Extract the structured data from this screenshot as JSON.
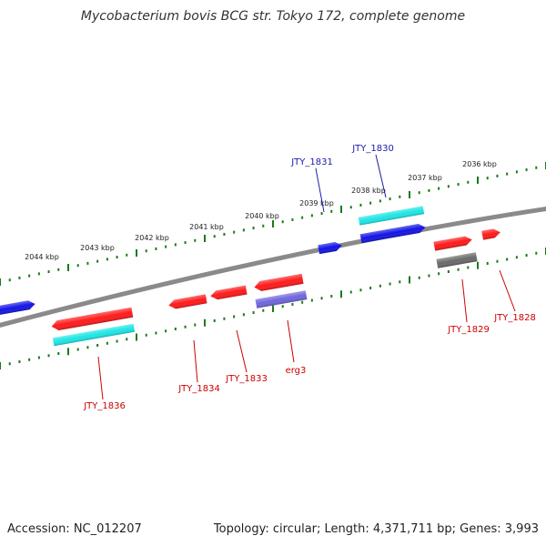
{
  "title": "Mycobacterium bovis BCG str. Tokyo 172, complete genome",
  "footer": {
    "accession": "Accession: NC_012207",
    "summary": "Topology: circular; Length: 4,371,711 bp; Genes: 3,993"
  },
  "colors": {
    "backbone": "#8a8a8a",
    "ticks": "#1a7a1a",
    "red": "#ff1a1a",
    "blue": "#1414e6",
    "cyan": "#1ee6e6",
    "slate": "#7066dd",
    "gray": "#6a6a6a",
    "label_red": "#cc0000",
    "label_blue": "#1a1aa8"
  },
  "scale_labels": [
    {
      "text": "2036 kbp",
      "kbp": 2036
    },
    {
      "text": "2037 kbp",
      "kbp": 2037
    },
    {
      "text": "2038 kbp",
      "kbp": 2038
    },
    {
      "text": "2039 kbp",
      "kbp": 2039
    },
    {
      "text": "2040 kbp",
      "kbp": 2040
    },
    {
      "text": "2041 kbp",
      "kbp": 2041
    },
    {
      "text": "2042 kbp",
      "kbp": 2042
    },
    {
      "text": "2043 kbp",
      "kbp": 2043
    },
    {
      "text": "2044 kbp",
      "kbp": 2044
    }
  ],
  "gene_labels": [
    {
      "text": "JTY_1831",
      "color": "blue"
    },
    {
      "text": "JTY_1830",
      "color": "blue"
    },
    {
      "text": "JTY_1829",
      "color": "red"
    },
    {
      "text": "JTY_1828",
      "color": "red"
    },
    {
      "text": "JTY_1833",
      "color": "red"
    },
    {
      "text": "erg3",
      "color": "red"
    },
    {
      "text": "JTY_1834",
      "color": "red"
    },
    {
      "text": "JTY_1836",
      "color": "red"
    }
  ]
}
